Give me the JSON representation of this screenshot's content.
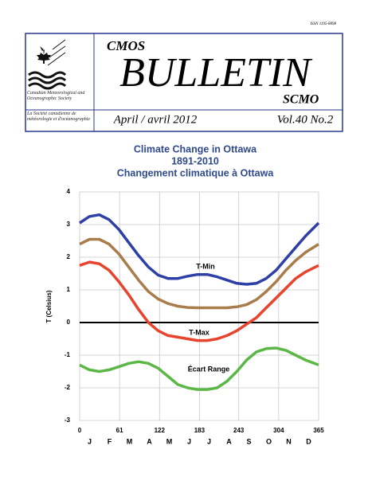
{
  "header": {
    "issn": "ISSN 1195-8898",
    "cmos": "CMOS",
    "title": "BULLETIN",
    "scmo": "SCMO",
    "society_en": "Canadian Meteorological and Oceanographic Society",
    "society_fr": "La Société canadienne de météorologie et d'océanographie",
    "date": "April / avril 2012",
    "volume": "Vol.40 No.2"
  },
  "chart_data": {
    "type": "line",
    "title": "Climate Change in Ottawa",
    "subtitle": "1891-2010",
    "title_fr": "Changement climatique à Ottawa",
    "y_label": "T (Celsius)",
    "months": [
      "J",
      "F",
      "M",
      "A",
      "M",
      "J",
      "J",
      "A",
      "S",
      "O",
      "N",
      "D"
    ],
    "x": [
      0,
      15,
      30,
      45,
      60,
      75,
      90,
      105,
      120,
      135,
      150,
      165,
      180,
      195,
      210,
      225,
      240,
      255,
      270,
      285,
      300,
      315,
      330,
      345,
      365
    ],
    "series": [
      {
        "color": "#2e40a6",
        "values": [
          3.05,
          3.25,
          3.3,
          3.15,
          2.85,
          2.45,
          2.05,
          1.7,
          1.45,
          1.35,
          1.35,
          1.42,
          1.47,
          1.47,
          1.4,
          1.3,
          1.2,
          1.17,
          1.2,
          1.35,
          1.6,
          1.95,
          2.3,
          2.65,
          3.05
        ]
      },
      {
        "color": "#a97c4c",
        "values": [
          2.4,
          2.55,
          2.55,
          2.4,
          2.1,
          1.7,
          1.3,
          0.95,
          0.72,
          0.58,
          0.5,
          0.46,
          0.45,
          0.45,
          0.45,
          0.45,
          0.48,
          0.55,
          0.7,
          0.95,
          1.25,
          1.6,
          1.9,
          2.15,
          2.4
        ]
      },
      {
        "color": "#e8432c",
        "values": [
          1.75,
          1.85,
          1.8,
          1.6,
          1.25,
          0.85,
          0.4,
          0.0,
          -0.25,
          -0.4,
          -0.45,
          -0.5,
          -0.55,
          -0.55,
          -0.5,
          -0.4,
          -0.25,
          -0.05,
          0.15,
          0.45,
          0.75,
          1.05,
          1.35,
          1.55,
          1.75
        ]
      },
      {
        "color": "#5cb846",
        "values": [
          -1.3,
          -1.45,
          -1.5,
          -1.45,
          -1.35,
          -1.25,
          -1.2,
          -1.25,
          -1.4,
          -1.65,
          -1.9,
          -2.0,
          -2.05,
          -2.05,
          -2.0,
          -1.8,
          -1.5,
          -1.15,
          -0.9,
          -0.8,
          -0.78,
          -0.85,
          -1.0,
          -1.15,
          -1.3
        ]
      }
    ],
    "annotations": [
      "T-Min",
      "T-Max",
      "Écart Range"
    ],
    "xlim": [
      0,
      365
    ],
    "xticks": [
      0,
      61,
      122,
      183,
      243,
      304,
      365
    ],
    "ylim": [
      -3,
      4
    ],
    "yticks": [
      -3,
      -2,
      -1,
      0,
      1,
      2,
      3,
      4
    ],
    "grid": true
  }
}
